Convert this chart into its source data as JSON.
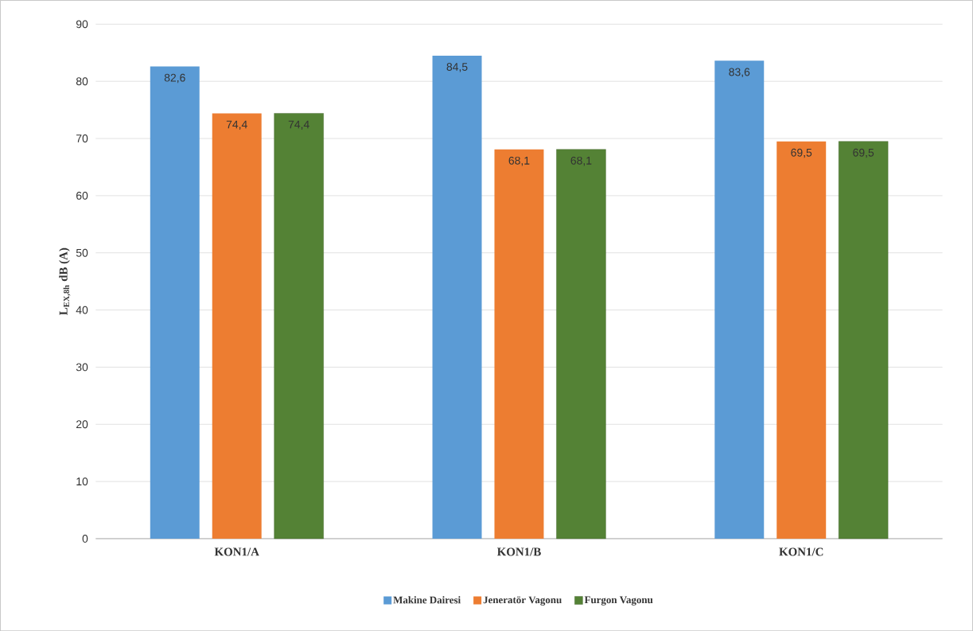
{
  "chart_data": {
    "type": "bar",
    "ylabel": "L$_{EX,8h}$ dB (A)",
    "categories": [
      "KON1/A",
      "KON1/B",
      "KON1/C"
    ],
    "series": [
      {
        "name": "Makine Dairesi",
        "color": "#5b9bd5",
        "values": [
          82.6,
          84.5,
          83.6
        ],
        "value_labels": [
          "82,6",
          "84,5",
          "83,6"
        ]
      },
      {
        "name": "Jeneratör Vagonu",
        "color": "#ed7d31",
        "values": [
          74.4,
          68.1,
          69.5
        ],
        "value_labels": [
          "74,4",
          "68,1",
          "69,5"
        ]
      },
      {
        "name": "Furgon Vagonu",
        "color": "#548235",
        "values": [
          74.4,
          68.1,
          69.5
        ],
        "value_labels": [
          "74,4",
          "68,1",
          "69,5"
        ]
      }
    ],
    "ylim": [
      0,
      90
    ],
    "yticks": [
      0,
      10,
      20,
      30,
      40,
      50,
      60,
      70,
      80,
      90
    ],
    "grid": "y",
    "legend": "bottom"
  }
}
